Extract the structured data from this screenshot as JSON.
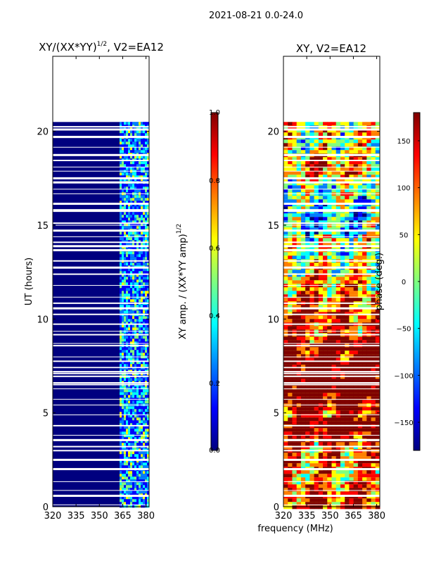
{
  "suptitle": "2021-08-21 0.0-24.0",
  "shared_xlabel": "frequency (MHz)",
  "colors": {
    "background": "#00007f",
    "jet": [
      "#00007f",
      "#0000ff",
      "#007fff",
      "#00ffff",
      "#7fff7f",
      "#ffff00",
      "#ff7f00",
      "#ff0000",
      "#7f0000"
    ]
  },
  "chart_data": [
    {
      "type": "heatmap",
      "title_main": "XY/(XX*YY)",
      "title_sup": "1/2",
      "title_rest": ", V2=EA12",
      "ylabel": "UT (hours)",
      "xlabel": "",
      "xlim": [
        320,
        382
      ],
      "ylim": [
        0,
        24
      ],
      "xticks": [
        320,
        335,
        350,
        365,
        380
      ],
      "yticks": [
        0,
        5,
        10,
        15,
        20
      ],
      "data_extent_hours": [
        0,
        20.5
      ],
      "colorbar": {
        "label_main": "XY amp. / (XX*YY amp)",
        "label_sup": "1/2",
        "range": [
          0.0,
          1.0
        ],
        "ticks": [
          "0.0",
          "0.2",
          "0.4",
          "0.6",
          "0.8",
          "1.0"
        ]
      }
    },
    {
      "type": "heatmap",
      "title_main": "XY, V2=EA12",
      "ylabel": "",
      "xlabel": "frequency (MHz)",
      "xlim": [
        320,
        382
      ],
      "ylim": [
        0,
        24
      ],
      "xticks": [
        320,
        335,
        350,
        365,
        380
      ],
      "yticks": [
        0,
        5,
        10,
        15,
        20
      ],
      "data_extent_hours": [
        0,
        20.5
      ],
      "colorbar": {
        "label_main": "phase (deg.)",
        "range": [
          -180,
          180
        ],
        "ticks": [
          "−150",
          "−100",
          "−50",
          "0",
          "50",
          "100",
          "150"
        ]
      }
    }
  ]
}
